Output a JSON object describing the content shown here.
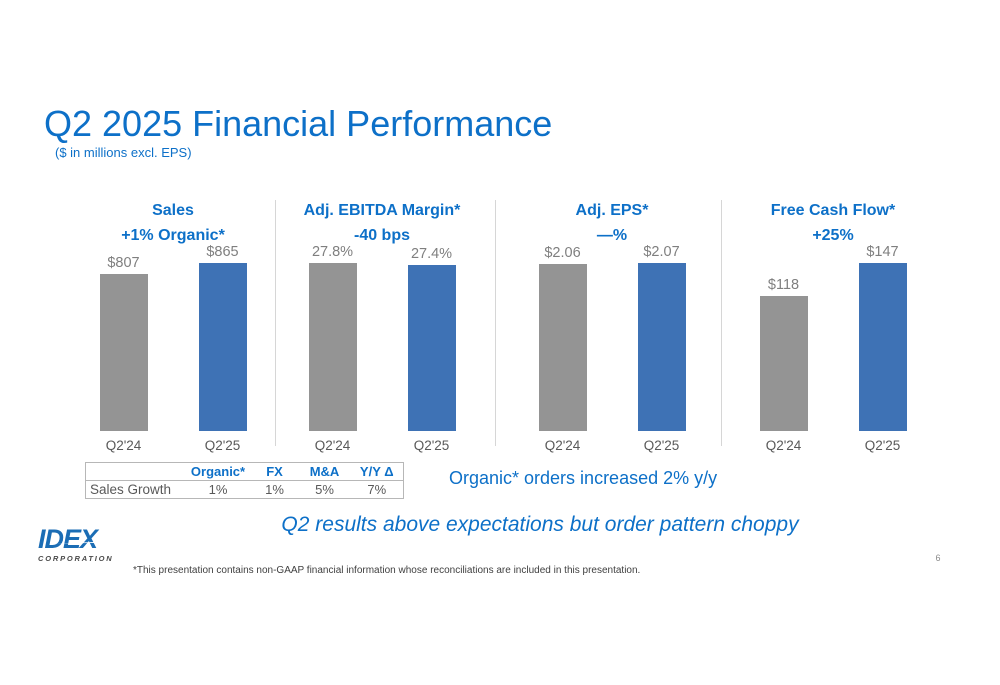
{
  "slide": {
    "title": "Q2 2025 Financial Performance",
    "subtitle": "($ in millions excl. EPS)",
    "orders_note": "Organic* orders increased 2% y/y",
    "tagline": "Q2 results above expectations but order pattern choppy",
    "footnote": "*This presentation contains non-GAAP financial information whose reconciliations are included in this presentation.",
    "page_number": "6"
  },
  "logo": {
    "name": "IDEX",
    "sub": "CORPORATION"
  },
  "colors": {
    "accent_blue": "#0d70c8",
    "bar_blue": "#3e72b5",
    "bar_gray": "#949494",
    "value_label_gray": "#7f7f7f",
    "axis_text_gray": "#595959"
  },
  "chart_data": [
    {
      "type": "bar",
      "title": "Sales",
      "change": "+1% Organic*",
      "categories": [
        "Q2'24",
        "Q2'25"
      ],
      "values": [
        807,
        865
      ],
      "value_labels": [
        "$807",
        "$865"
      ],
      "series_colors": [
        "#949494",
        "#3e72b5"
      ],
      "ylim": [
        0,
        865
      ]
    },
    {
      "type": "bar",
      "title": "Adj. EBITDA Margin*",
      "change": "-40 bps",
      "categories": [
        "Q2'24",
        "Q2'25"
      ],
      "values": [
        27.8,
        27.4
      ],
      "value_labels": [
        "27.8%",
        "27.4%"
      ],
      "series_colors": [
        "#949494",
        "#3e72b5"
      ],
      "ylim": [
        0,
        27.8
      ]
    },
    {
      "type": "bar",
      "title": "Adj. EPS*",
      "change": "—%",
      "categories": [
        "Q2'24",
        "Q2'25"
      ],
      "values": [
        2.06,
        2.07
      ],
      "value_labels": [
        "$2.06",
        "$2.07"
      ],
      "series_colors": [
        "#949494",
        "#3e72b5"
      ],
      "ylim": [
        0,
        2.07
      ]
    },
    {
      "type": "bar",
      "title": "Free Cash Flow*",
      "change": "+25%",
      "categories": [
        "Q2'24",
        "Q2'25"
      ],
      "values": [
        118,
        147
      ],
      "value_labels": [
        "$118",
        "$147"
      ],
      "series_colors": [
        "#949494",
        "#3e72b5"
      ],
      "ylim": [
        0,
        147
      ]
    }
  ],
  "table": {
    "headers": [
      "",
      "Organic*",
      "FX",
      "M&A",
      "Y/Y Δ"
    ],
    "rows": [
      {
        "label": "Sales Growth",
        "values": [
          "1%",
          "1%",
          "5%",
          "7%"
        ]
      }
    ]
  }
}
